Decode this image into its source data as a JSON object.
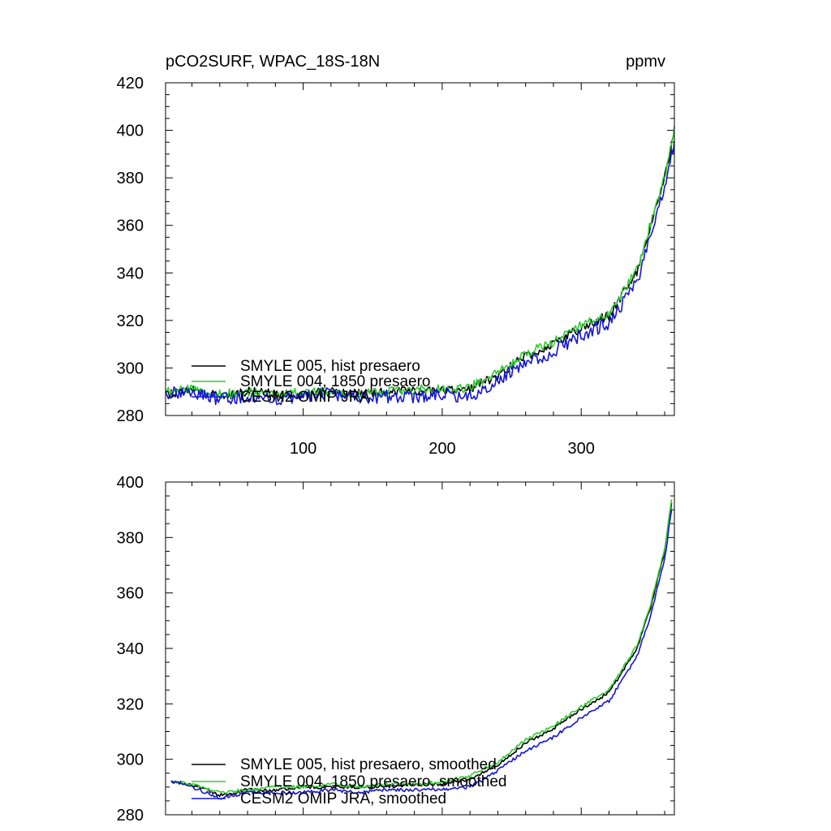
{
  "chart_data": [
    {
      "type": "line",
      "title_left": "pCO2SURF, WPAC_18S-18N",
      "title_right": "ppmv",
      "xlim": [
        1,
        367
      ],
      "ylim": [
        280,
        420
      ],
      "xticks": [
        100,
        200,
        300
      ],
      "xtick_labels": [
        "100",
        "200",
        "300"
      ],
      "yticks": [
        280,
        300,
        320,
        340,
        360,
        380,
        400,
        420
      ],
      "ytick_labels": [
        "280",
        "300",
        "320",
        "340",
        "360",
        "380",
        "400",
        "420"
      ],
      "legend_location": "lower-left",
      "keypoints_x": [
        1,
        20,
        40,
        60,
        80,
        100,
        120,
        140,
        160,
        180,
        200,
        220,
        240,
        260,
        280,
        300,
        320,
        340,
        350,
        360,
        367
      ],
      "series": [
        {
          "name": "SMYLE 005, hist presaero",
          "color": "#000000",
          "noise": 2.0,
          "values": [
            289,
            291,
            288,
            290,
            289,
            289,
            290,
            289,
            290,
            290,
            291,
            291,
            297,
            305,
            310,
            317,
            322,
            340,
            360,
            380,
            399
          ]
        },
        {
          "name": "SMYLE 004, 1850 presaero",
          "color": "#33cc33",
          "noise": 2.0,
          "values": [
            290,
            291,
            289,
            290,
            289,
            290,
            290,
            289,
            290,
            291,
            291,
            292,
            298,
            306,
            311,
            318,
            323,
            341,
            361,
            381,
            400
          ]
        },
        {
          "name": "CESM2 OMIP JRA",
          "color": "#1515d4",
          "noise": 2.8,
          "values": [
            289,
            290,
            287,
            288,
            287,
            288,
            289,
            287,
            288,
            288,
            289,
            288,
            295,
            302,
            307,
            314,
            319,
            336,
            356,
            376,
            395
          ]
        }
      ]
    },
    {
      "type": "line",
      "xlim": [
        1,
        367
      ],
      "ylim": [
        280,
        400
      ],
      "xticks": [
        100,
        200,
        300
      ],
      "yticks": [
        280,
        300,
        320,
        340,
        360,
        380,
        400
      ],
      "ytick_labels": [
        "280",
        "300",
        "320",
        "340",
        "360",
        "380",
        "400"
      ],
      "legend_location": "lower-left",
      "keypoints_x": [
        5,
        20,
        40,
        60,
        80,
        100,
        120,
        140,
        160,
        180,
        200,
        220,
        240,
        260,
        280,
        300,
        320,
        340,
        350,
        360,
        365
      ],
      "series": [
        {
          "name": "SMYLE 005, hist presaero, smoothed",
          "color": "#000000",
          "noise": 0.6,
          "values": [
            292,
            291,
            287,
            289,
            289,
            290,
            290,
            290,
            290,
            291,
            291,
            293,
            298,
            306,
            311,
            318,
            324,
            340,
            355,
            375,
            393
          ]
        },
        {
          "name": "SMYLE 004, 1850 presaero, smoothed",
          "color": "#33cc33",
          "noise": 0.6,
          "values": [
            292,
            291,
            288,
            289,
            290,
            290,
            291,
            290,
            291,
            291,
            292,
            294,
            299,
            307,
            312,
            319,
            325,
            341,
            356,
            376,
            394
          ]
        },
        {
          "name": "CESM2 OMIP JRA, smoothed",
          "color": "#1515d4",
          "noise": 0.6,
          "values": [
            292,
            290,
            286,
            288,
            288,
            288,
            289,
            288,
            289,
            289,
            289,
            290,
            296,
            303,
            308,
            315,
            321,
            337,
            352,
            372,
            390
          ]
        }
      ]
    }
  ]
}
